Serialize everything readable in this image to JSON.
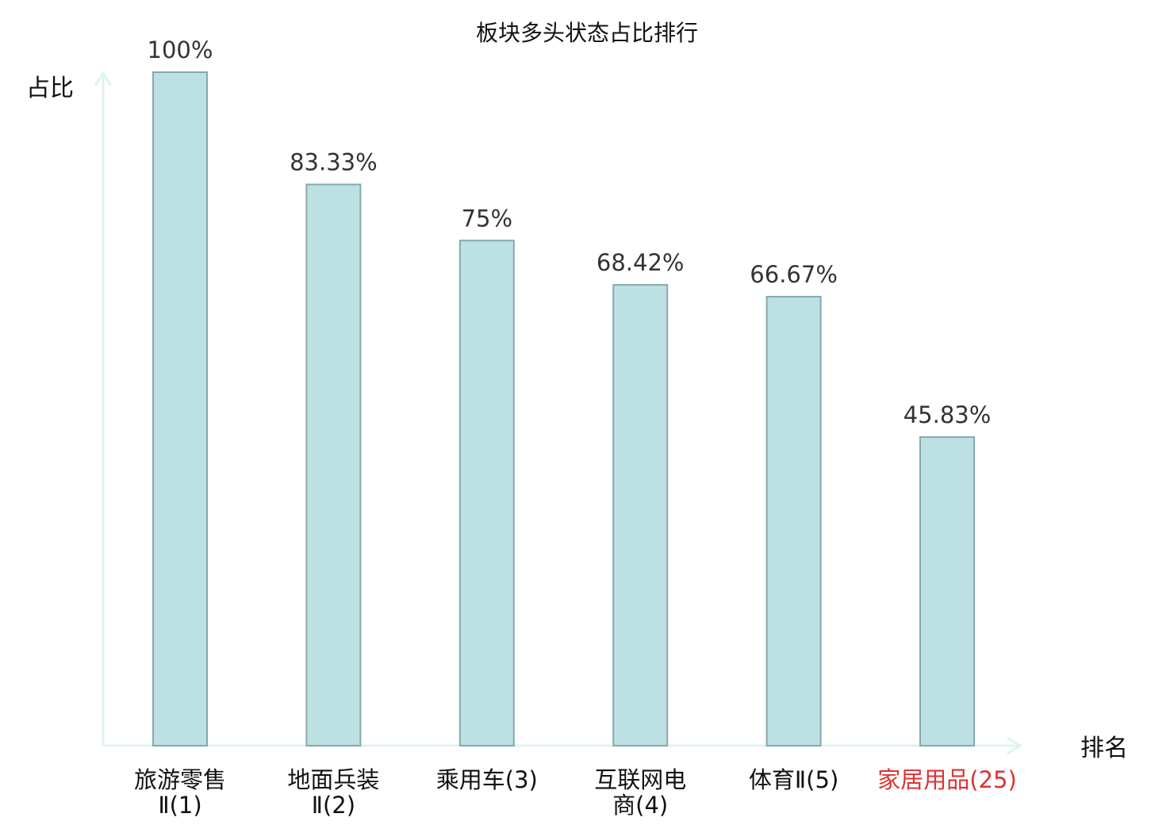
{
  "chart_data": {
    "type": "bar",
    "title": "板块多头状态占比排行",
    "ylabel": "占比",
    "xlabel": "排名",
    "categories": [
      [
        "旅游零售",
        "Ⅱ(1)"
      ],
      [
        "地面兵装",
        "Ⅱ(2)"
      ],
      [
        "乘用车(3)"
      ],
      [
        "互联网电",
        "商(4)"
      ],
      [
        "体育Ⅱ(5)"
      ],
      [
        "家居用品(25)"
      ]
    ],
    "values": [
      100,
      83.33,
      75,
      68.42,
      66.67,
      45.83
    ],
    "value_labels": [
      "100%",
      "83.33%",
      "75%",
      "68.42%",
      "66.67%",
      "45.83%"
    ],
    "highlight_index": 5,
    "ylim": [
      0,
      100
    ],
    "grid": false,
    "colors": {
      "bar_fill": "#bde0e3",
      "bar_stroke": "#86a9ad",
      "axis": "#dff3f0",
      "text": "#333333",
      "label": "#111111",
      "highlight": "#e03131"
    }
  }
}
